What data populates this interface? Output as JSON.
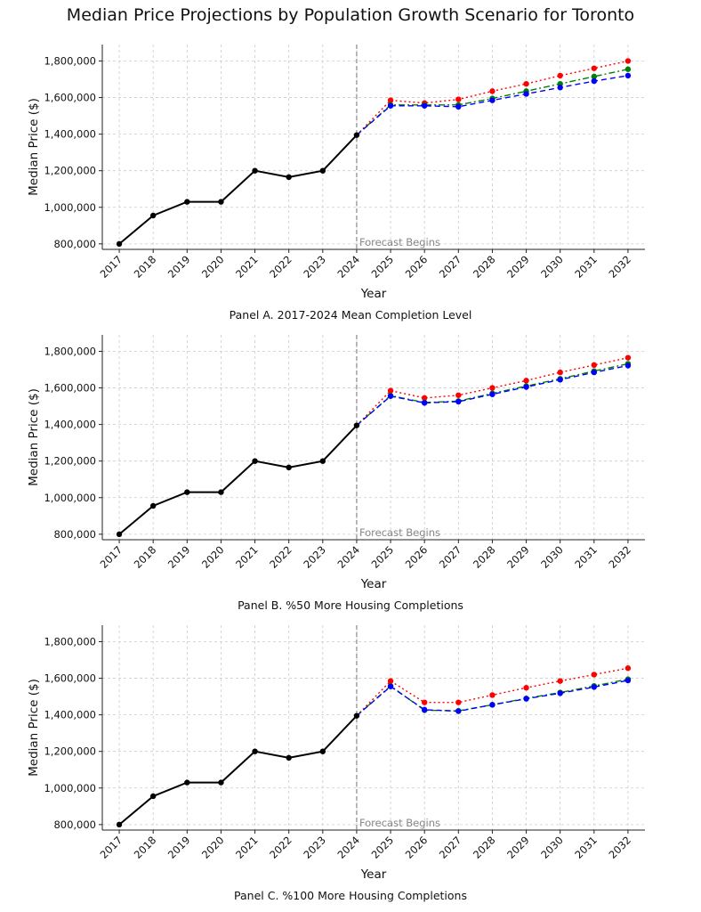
{
  "title": "Median Price Projections by Population Growth Scenario for Toronto",
  "chart_data": [
    {
      "type": "line",
      "caption": "Panel A. 2017-2024 Mean Completion Level",
      "xlabel": "Year",
      "ylabel": "Median Price ($)",
      "ylim": [
        770000,
        1890000
      ],
      "yticks": [
        800000,
        1000000,
        1200000,
        1400000,
        1600000,
        1800000
      ],
      "ytick_labels": [
        "800,000",
        "1,000,000",
        "1,200,000",
        "1,400,000",
        "1,600,000",
        "1,800,000"
      ],
      "categories": [
        "2017",
        "2018",
        "2019",
        "2020",
        "2021",
        "2022",
        "2023",
        "2024",
        "2025",
        "2026",
        "2027",
        "2028",
        "2029",
        "2030",
        "2031",
        "2032"
      ],
      "forecast_start": "2024",
      "annotation": "Forecast Begins",
      "grid": true,
      "series": [
        {
          "role": "historical",
          "color": "#000000",
          "style": "solid",
          "x": [
            "2017",
            "2018",
            "2019",
            "2020",
            "2021",
            "2022",
            "2023",
            "2024"
          ],
          "values": [
            800000,
            955000,
            1030000,
            1030000,
            1200000,
            1165000,
            1200000,
            1395000
          ]
        },
        {
          "role": "high",
          "color": "#ff0000",
          "style": "dotted",
          "x": [
            "2024",
            "2025",
            "2026",
            "2027",
            "2028",
            "2029",
            "2030",
            "2031",
            "2032"
          ],
          "values": [
            1395000,
            1585000,
            1570000,
            1590000,
            1635000,
            1675000,
            1720000,
            1760000,
            1800000
          ]
        },
        {
          "role": "medium",
          "color": "#008000",
          "style": "dashdot",
          "x": [
            "2024",
            "2025",
            "2026",
            "2027",
            "2028",
            "2029",
            "2030",
            "2031",
            "2032"
          ],
          "values": [
            1395000,
            1560000,
            1560000,
            1560000,
            1595000,
            1635000,
            1675000,
            1715000,
            1755000
          ]
        },
        {
          "role": "low",
          "color": "#0000ff",
          "style": "dashed",
          "x": [
            "2024",
            "2025",
            "2026",
            "2027",
            "2028",
            "2029",
            "2030",
            "2031",
            "2032"
          ],
          "values": [
            1395000,
            1555000,
            1555000,
            1550000,
            1585000,
            1620000,
            1655000,
            1690000,
            1720000
          ]
        }
      ]
    },
    {
      "type": "line",
      "caption": "Panel B. %50 More Housing Completions",
      "xlabel": "Year",
      "ylabel": "Median Price ($)",
      "ylim": [
        770000,
        1890000
      ],
      "yticks": [
        800000,
        1000000,
        1200000,
        1400000,
        1600000,
        1800000
      ],
      "ytick_labels": [
        "800,000",
        "1,000,000",
        "1,200,000",
        "1,400,000",
        "1,600,000",
        "1,800,000"
      ],
      "categories": [
        "2017",
        "2018",
        "2019",
        "2020",
        "2021",
        "2022",
        "2023",
        "2024",
        "2025",
        "2026",
        "2027",
        "2028",
        "2029",
        "2030",
        "2031",
        "2032"
      ],
      "forecast_start": "2024",
      "annotation": "Forecast Begins",
      "grid": true,
      "series": [
        {
          "role": "historical",
          "color": "#000000",
          "style": "solid",
          "x": [
            "2017",
            "2018",
            "2019",
            "2020",
            "2021",
            "2022",
            "2023",
            "2024"
          ],
          "values": [
            800000,
            955000,
            1030000,
            1030000,
            1200000,
            1165000,
            1200000,
            1395000
          ]
        },
        {
          "role": "high",
          "color": "#ff0000",
          "style": "dotted",
          "x": [
            "2024",
            "2025",
            "2026",
            "2027",
            "2028",
            "2029",
            "2030",
            "2031",
            "2032"
          ],
          "values": [
            1395000,
            1585000,
            1545000,
            1560000,
            1600000,
            1640000,
            1685000,
            1725000,
            1765000
          ]
        },
        {
          "role": "medium",
          "color": "#008000",
          "style": "dashdot",
          "x": [
            "2024",
            "2025",
            "2026",
            "2027",
            "2028",
            "2029",
            "2030",
            "2031",
            "2032"
          ],
          "values": [
            1395000,
            1558000,
            1520000,
            1528000,
            1570000,
            1610000,
            1650000,
            1692000,
            1732000
          ]
        },
        {
          "role": "low",
          "color": "#0000ff",
          "style": "dashed",
          "x": [
            "2024",
            "2025",
            "2026",
            "2027",
            "2028",
            "2029",
            "2030",
            "2031",
            "2032"
          ],
          "values": [
            1395000,
            1555000,
            1518000,
            1525000,
            1565000,
            1605000,
            1645000,
            1685000,
            1722000
          ]
        }
      ]
    },
    {
      "type": "line",
      "caption": "Panel C. %100 More Housing Completions",
      "xlabel": "Year",
      "ylabel": "Median Price ($)",
      "ylim": [
        770000,
        1890000
      ],
      "yticks": [
        800000,
        1000000,
        1200000,
        1400000,
        1600000,
        1800000
      ],
      "ytick_labels": [
        "800,000",
        "1,000,000",
        "1,200,000",
        "1,400,000",
        "1,600,000",
        "1,800,000"
      ],
      "categories": [
        "2017",
        "2018",
        "2019",
        "2020",
        "2021",
        "2022",
        "2023",
        "2024",
        "2025",
        "2026",
        "2027",
        "2028",
        "2029",
        "2030",
        "2031",
        "2032"
      ],
      "forecast_start": "2024",
      "annotation": "Forecast Begins",
      "grid": true,
      "series": [
        {
          "role": "historical",
          "color": "#000000",
          "style": "solid",
          "x": [
            "2017",
            "2018",
            "2019",
            "2020",
            "2021",
            "2022",
            "2023",
            "2024"
          ],
          "values": [
            800000,
            955000,
            1030000,
            1030000,
            1200000,
            1165000,
            1200000,
            1395000
          ]
        },
        {
          "role": "high",
          "color": "#ff0000",
          "style": "dotted",
          "x": [
            "2024",
            "2025",
            "2026",
            "2027",
            "2028",
            "2029",
            "2030",
            "2031",
            "2032"
          ],
          "values": [
            1395000,
            1585000,
            1468000,
            1468000,
            1508000,
            1548000,
            1585000,
            1620000,
            1655000
          ]
        },
        {
          "role": "medium",
          "color": "#008000",
          "style": "dashdot",
          "x": [
            "2024",
            "2025",
            "2026",
            "2027",
            "2028",
            "2029",
            "2030",
            "2031",
            "2032"
          ],
          "values": [
            1395000,
            1558000,
            1425000,
            1422000,
            1455000,
            1490000,
            1522000,
            1558000,
            1595000
          ]
        },
        {
          "role": "low",
          "color": "#0000ff",
          "style": "dashed",
          "x": [
            "2024",
            "2025",
            "2026",
            "2027",
            "2028",
            "2029",
            "2030",
            "2031",
            "2032"
          ],
          "values": [
            1395000,
            1555000,
            1428000,
            1420000,
            1455000,
            1488000,
            1518000,
            1552000,
            1588000
          ]
        }
      ]
    }
  ]
}
